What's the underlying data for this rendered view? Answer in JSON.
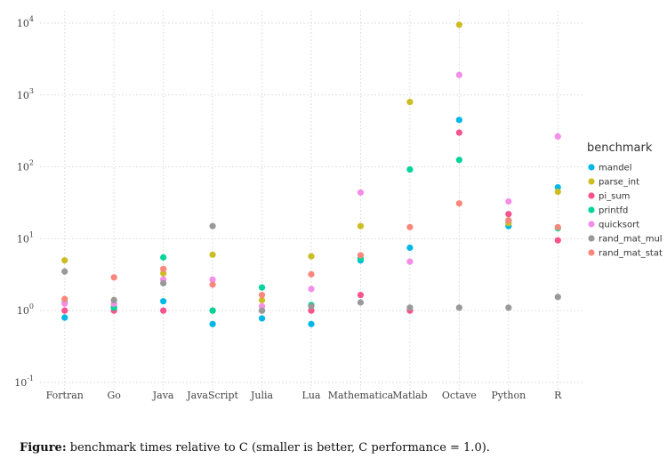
{
  "chart_data": {
    "type": "scatter",
    "title": "",
    "xlabel": "",
    "ylabel": "",
    "yscale": "log",
    "ylim": [
      0.1,
      10000
    ],
    "yticks": [
      {
        "value": 0.1,
        "base": "10",
        "exp": "-1"
      },
      {
        "value": 1,
        "base": "10",
        "exp": "0"
      },
      {
        "value": 10,
        "base": "10",
        "exp": "1"
      },
      {
        "value": 100,
        "base": "10",
        "exp": "2"
      },
      {
        "value": 1000,
        "base": "10",
        "exp": "3"
      },
      {
        "value": 10000,
        "base": "10",
        "exp": "4"
      }
    ],
    "categories": [
      "Fortran",
      "Go",
      "Java",
      "JavaScript",
      "Julia",
      "Lua",
      "Mathematica",
      "Matlab",
      "Octave",
      "Python",
      "R"
    ],
    "legend": {
      "title": "benchmark",
      "position": "right"
    },
    "grid": true,
    "series": [
      {
        "name": "mandel",
        "color": "#00b8e7",
        "values": [
          0.8,
          1.1,
          1.35,
          0.65,
          0.78,
          0.65,
          5.0,
          7.5,
          450,
          15.0,
          52
        ]
      },
      {
        "name": "parse_int",
        "color": "#cdbd25",
        "values": [
          5.0,
          1.2,
          3.3,
          6.0,
          1.4,
          5.7,
          15.0,
          800,
          9500,
          16.5,
          45
        ]
      },
      {
        "name": "pi_sum",
        "color": "#f8538d",
        "values": [
          1.0,
          1.0,
          1.0,
          1.0,
          1.0,
          1.0,
          1.65,
          1.0,
          300,
          22,
          9.5
        ]
      },
      {
        "name": "printfd",
        "color": "#00d59c",
        "values": [
          1.3,
          1.1,
          5.5,
          1.0,
          2.1,
          1.2,
          5.3,
          92,
          125,
          18,
          14
        ]
      },
      {
        "name": "quicksort",
        "color": "#f58ee8",
        "values": [
          1.25,
          1.25,
          2.7,
          2.7,
          1.15,
          2.0,
          44,
          4.8,
          1900,
          33,
          265
        ]
      },
      {
        "name": "rand_mat_mul",
        "color": "#999999",
        "values": [
          3.5,
          1.4,
          2.4,
          15.0,
          1.0,
          1.15,
          1.3,
          1.1,
          1.1,
          1.1,
          1.55
        ]
      },
      {
        "name": "rand_mat_stat",
        "color": "#f9877c",
        "values": [
          1.45,
          2.9,
          3.8,
          2.3,
          1.65,
          3.2,
          5.9,
          14.5,
          31,
          18,
          14.5
        ]
      }
    ]
  },
  "caption": {
    "bold": "Figure:",
    "text": " benchmark times relative to C (smaller is better, C performance = 1.0)."
  }
}
